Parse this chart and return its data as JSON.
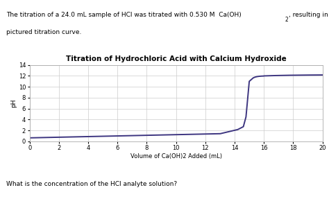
{
  "title": "Titration of Hydrochloric Acid with Calcium Hydroxide",
  "xlabel": "Volume of Ca(OH)2 Added (mL)",
  "ylabel": "pH",
  "xlim": [
    0,
    20
  ],
  "ylim": [
    0,
    14
  ],
  "xticks": [
    0,
    2,
    4,
    6,
    8,
    10,
    12,
    14,
    16,
    18,
    20
  ],
  "yticks": [
    0,
    2,
    4,
    6,
    8,
    10,
    12,
    14
  ],
  "line_color": "#3d3580",
  "background_color": "#ffffff",
  "grid_color": "#cccccc",
  "text_line1": "The titration of a 24.0 mL sample of HCl was titrated with 0.530 M  Ca(OH)",
  "text_line1_sub": "2",
  "text_line1_end": ", resulting in the",
  "text_line2": "pictured titration curve.",
  "text_bottom": "What is the concentration of the HCl analyte solution?",
  "fig_width": 4.74,
  "fig_height": 2.87
}
